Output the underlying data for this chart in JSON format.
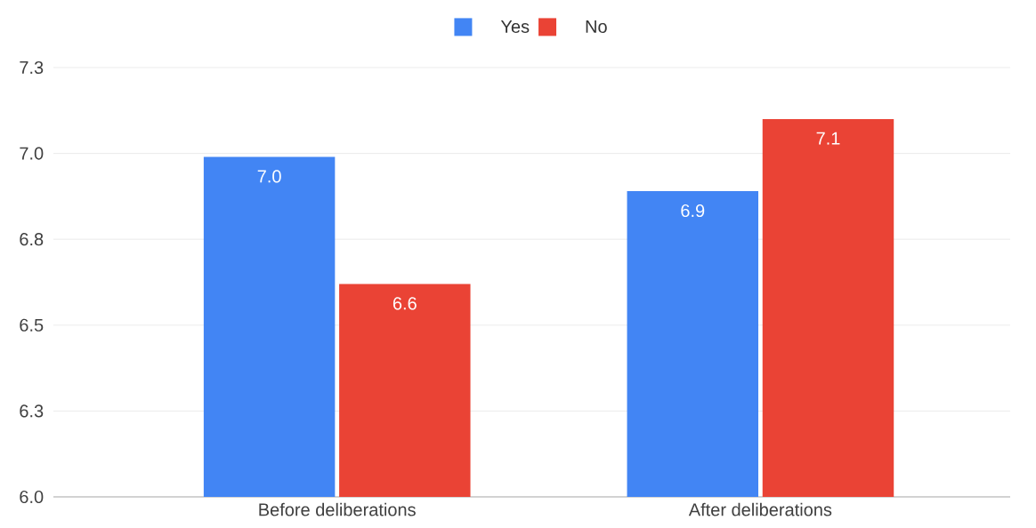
{
  "chart_data": {
    "type": "bar",
    "categories": [
      "Before deliberations",
      "After deliberations"
    ],
    "series": [
      {
        "name": "Yes",
        "color": "#4285f4",
        "values": [
          6.99,
          6.89
        ],
        "value_labels": [
          "7.0",
          "6.9"
        ]
      },
      {
        "name": "No",
        "color": "#ea4335",
        "values": [
          6.62,
          7.1
        ],
        "value_labels": [
          "6.6",
          "7.1"
        ]
      }
    ],
    "ylim": [
      6.0,
      7.25
    ],
    "yticks": [
      {
        "value": 6,
        "label": "6.0"
      },
      {
        "value": 6.25,
        "label": "6.3"
      },
      6.5,
      {
        "value": 6.75,
        "label": "6.8"
      },
      {
        "value": 7,
        "label": "7.0"
      },
      {
        "value": 7.25,
        "label": "7.3"
      }
    ],
    "grid": "y",
    "legend": "top"
  }
}
